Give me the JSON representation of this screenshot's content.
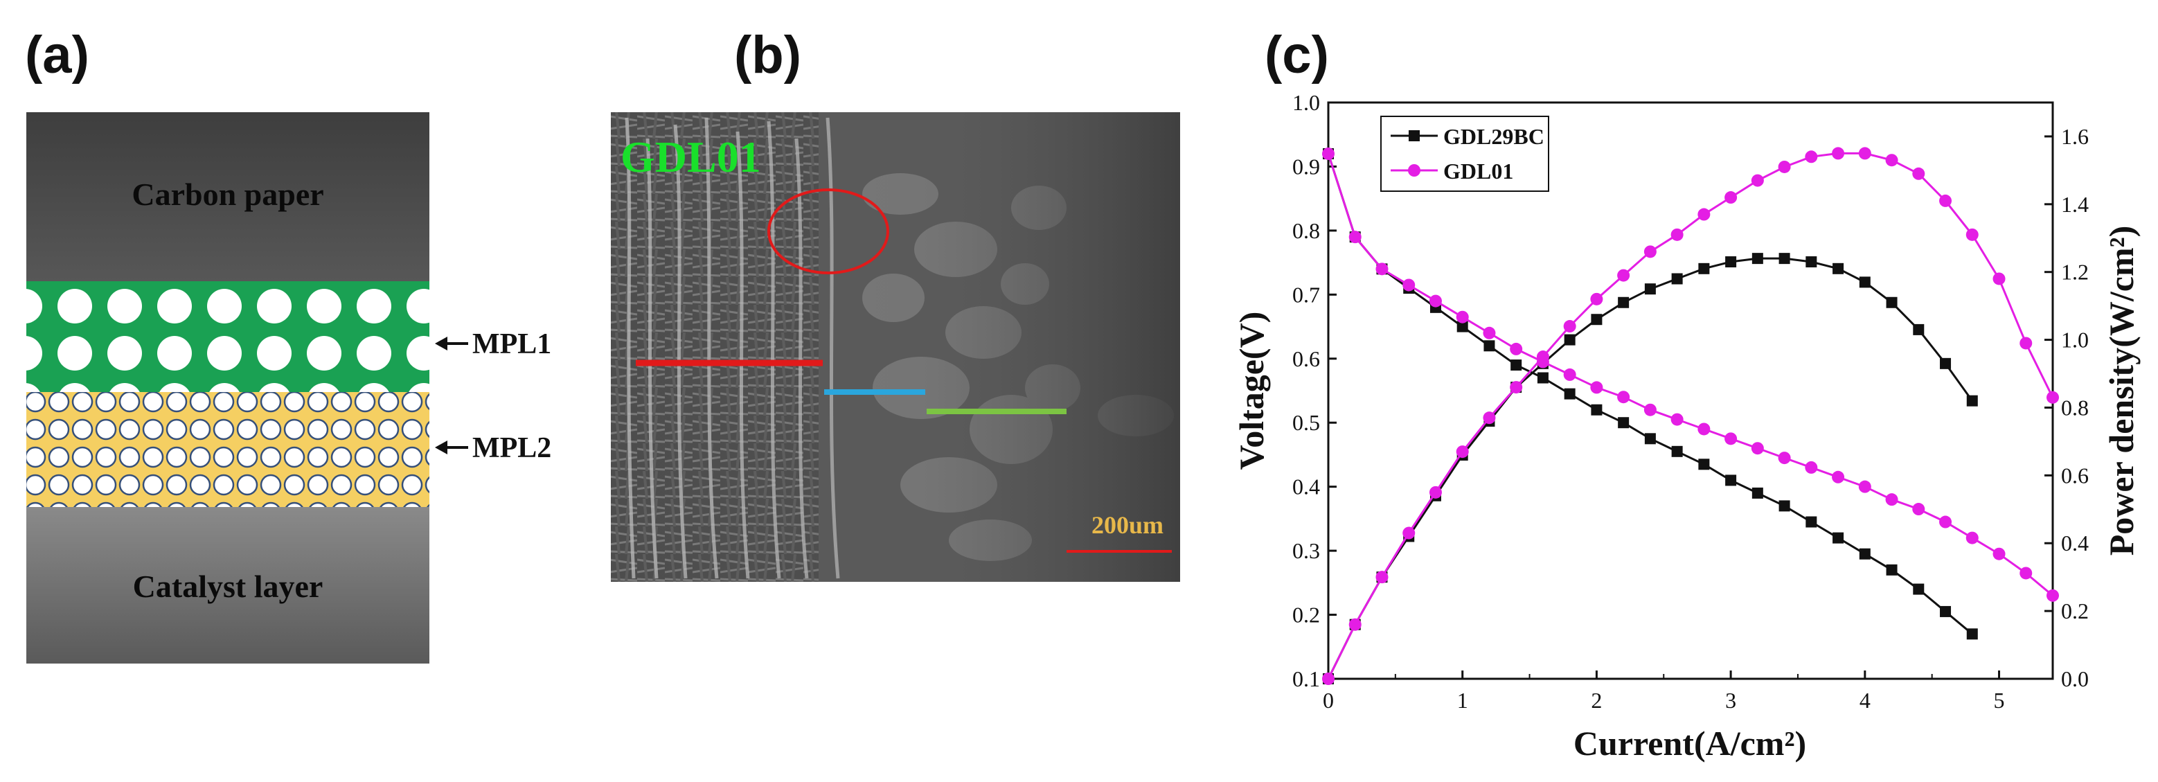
{
  "panels": {
    "a": {
      "label": "(a)",
      "layers": {
        "top": "Carbon paper",
        "bottom": "Catalyst layer",
        "mpl1": "MPL1",
        "mpl2": "MPL2"
      },
      "colors": {
        "carbon_paper": "#4a4a4a",
        "mpl1": "#1aa153",
        "mpl2": "#f5cf62",
        "catalyst": "#777777"
      }
    },
    "b": {
      "label": "(b)",
      "sample_label": "GDL01",
      "scale_bar": "200um",
      "colors": {
        "sample_label": "#19e02b",
        "scale_text": "#e8b84a",
        "red_line": "#e11a1a",
        "blue_line": "#2aa6dd",
        "green_line": "#7cc443"
      }
    },
    "c": {
      "label": "(c)"
    }
  },
  "chart_data": {
    "type": "line",
    "xlabel": "Current(A/cm²)",
    "ylabel_left": "Voltage(V)",
    "ylabel_right": "Power density(W/cm²)",
    "xlim": [
      0,
      5.4
    ],
    "ylim_left": [
      0.1,
      1.0
    ],
    "ylim_right": [
      0.0,
      1.7
    ],
    "x_ticks": [
      0,
      1,
      2,
      3,
      4,
      5
    ],
    "y_left_ticks": [
      0.1,
      0.2,
      0.3,
      0.4,
      0.5,
      0.6,
      0.7,
      0.8,
      0.9,
      1.0
    ],
    "y_right_ticks": [
      0.0,
      0.2,
      0.4,
      0.6,
      0.8,
      1.0,
      1.2,
      1.4,
      1.6
    ],
    "legend_position": "top-left",
    "series": [
      {
        "name": "GDL29BC",
        "color": "#111111",
        "marker": "square",
        "x": [
          0,
          0.2,
          0.4,
          0.6,
          0.8,
          1.0,
          1.2,
          1.4,
          1.6,
          1.8,
          2.0,
          2.2,
          2.4,
          2.6,
          2.8,
          3.0,
          3.2,
          3.4,
          3.6,
          3.8,
          4.0,
          4.2,
          4.4,
          4.6,
          4.8
        ],
        "voltage": [
          0.92,
          0.79,
          0.74,
          0.71,
          0.68,
          0.65,
          0.62,
          0.59,
          0.57,
          0.545,
          0.52,
          0.5,
          0.475,
          0.455,
          0.435,
          0.41,
          0.39,
          0.37,
          0.345,
          0.32,
          0.295,
          0.27,
          0.24,
          0.205,
          0.17
        ],
        "power": [
          0.0,
          0.16,
          0.3,
          0.42,
          0.54,
          0.66,
          0.76,
          0.86,
          0.93,
          1.0,
          1.06,
          1.11,
          1.15,
          1.18,
          1.21,
          1.23,
          1.24,
          1.24,
          1.23,
          1.21,
          1.17,
          1.11,
          1.03,
          0.93,
          0.82
        ]
      },
      {
        "name": "GDL01",
        "color": "#e41ee4",
        "marker": "circle",
        "x": [
          0,
          0.2,
          0.4,
          0.6,
          0.8,
          1.0,
          1.2,
          1.4,
          1.6,
          1.8,
          2.0,
          2.2,
          2.4,
          2.6,
          2.8,
          3.0,
          3.2,
          3.4,
          3.6,
          3.8,
          4.0,
          4.2,
          4.4,
          4.6,
          4.8,
          5.0,
          5.2,
          5.4
        ],
        "voltage": [
          0.92,
          0.79,
          0.74,
          0.715,
          0.69,
          0.665,
          0.64,
          0.615,
          0.595,
          0.575,
          0.555,
          0.54,
          0.52,
          0.505,
          0.49,
          0.475,
          0.46,
          0.445,
          0.43,
          0.415,
          0.4,
          0.38,
          0.365,
          0.345,
          0.32,
          0.295,
          0.265,
          0.23
        ],
        "power": [
          0.0,
          0.16,
          0.3,
          0.43,
          0.55,
          0.67,
          0.77,
          0.86,
          0.95,
          1.04,
          1.12,
          1.19,
          1.26,
          1.31,
          1.37,
          1.42,
          1.47,
          1.51,
          1.54,
          1.55,
          1.55,
          1.53,
          1.49,
          1.41,
          1.31,
          1.18,
          0.99,
          0.83
        ]
      }
    ]
  }
}
